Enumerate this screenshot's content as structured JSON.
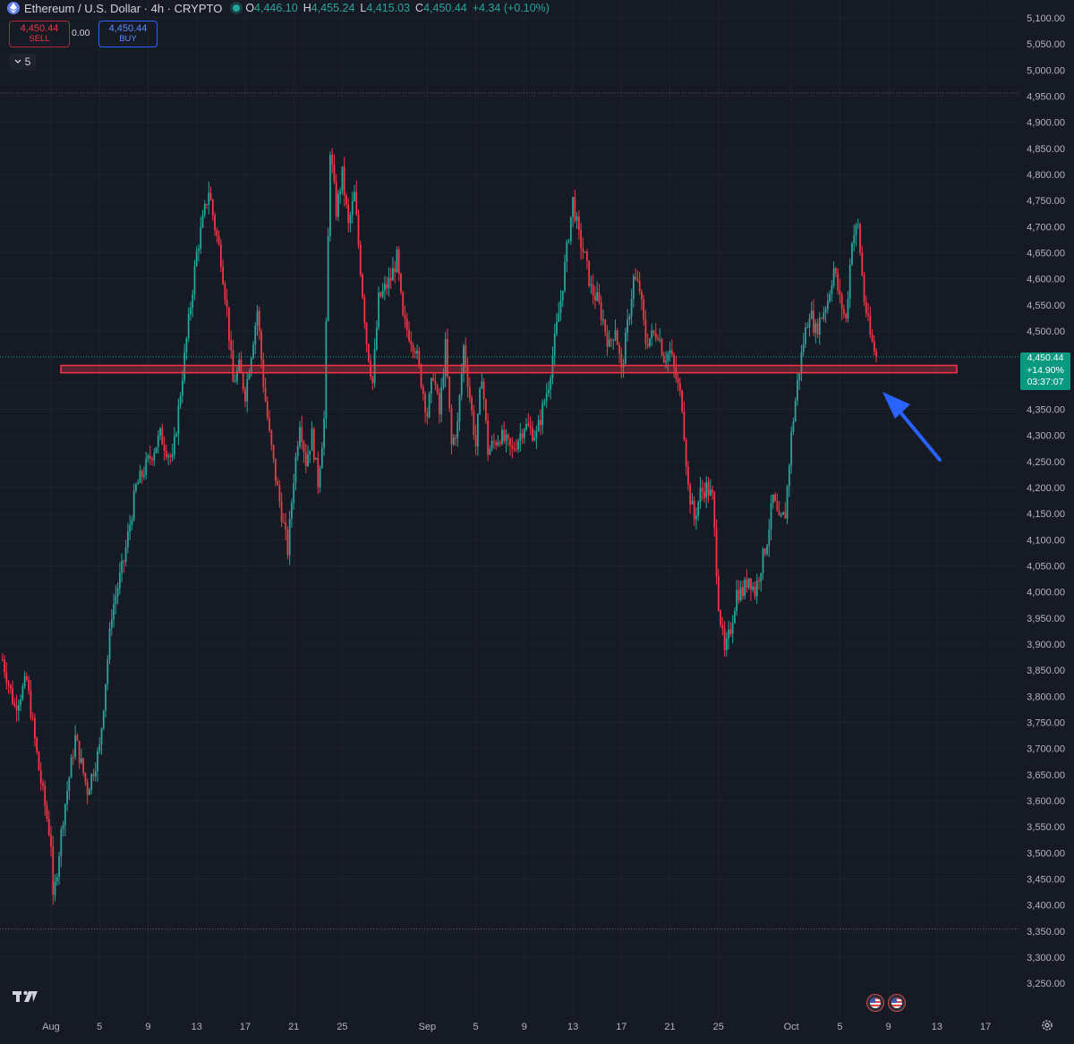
{
  "header": {
    "symbol_title": "Ethereum / U.S. Dollar · 4h · CRYPTO",
    "open_label": "O",
    "open_value": "4,446.10",
    "high_label": "H",
    "high_value": "4,455.24",
    "low_label": "L",
    "low_value": "4,415.03",
    "close_label": "C",
    "close_value": "4,450.44",
    "change": "+4.34 (+0.10%)"
  },
  "trade_panel": {
    "sell_price": "4,450.44",
    "sell_label": "SELL",
    "spread": "0.00",
    "buy_price": "4,450.44",
    "buy_label": "BUY"
  },
  "indicators_collapse": {
    "count": "5"
  },
  "last_price_tag": {
    "price": "4,450.44",
    "percent": "+14.90%",
    "countdown": "03:37:07"
  },
  "icons": {
    "currency": "ethereum-icon",
    "logo": "tradingview-logo",
    "settings": "gear-icon",
    "events": [
      "us-flag-icon",
      "us-flag-icon"
    ],
    "annotation": "arrow-icon"
  },
  "colors": {
    "background": "#161a25",
    "up": "#26a69a",
    "down": "#f23645",
    "zone": "#f23645",
    "arrow": "#2962ff",
    "price_tag": "#089981"
  },
  "chart_data": {
    "type": "candlestick",
    "timeframe": "4h",
    "y_axis": {
      "range": [
        3200,
        5120
      ],
      "ticks": [
        "5,100.00",
        "5,050.00",
        "5,000.00",
        "4,950.00",
        "4,900.00",
        "4,850.00",
        "4,800.00",
        "4,750.00",
        "4,700.00",
        "4,650.00",
        "4,600.00",
        "4,550.00",
        "4,500.00",
        "4,450.00",
        "4,400.00",
        "4,350.00",
        "4,300.00",
        "4,250.00",
        "4,200.00",
        "4,150.00",
        "4,100.00",
        "4,050.00",
        "4,000.00",
        "3,950.00",
        "3,900.00",
        "3,850.00",
        "3,800.00",
        "3,750.00",
        "3,700.00",
        "3,650.00",
        "3,600.00",
        "3,550.00",
        "3,500.00",
        "3,450.00",
        "3,400.00",
        "3,350.00",
        "3,300.00",
        "3,250.00"
      ]
    },
    "x_axis": {
      "ticks": [
        {
          "label": "Aug",
          "day": 0
        },
        {
          "label": "5",
          "day": 4
        },
        {
          "label": "9",
          "day": 8
        },
        {
          "label": "13",
          "day": 12
        },
        {
          "label": "17",
          "day": 16
        },
        {
          "label": "21",
          "day": 20
        },
        {
          "label": "25",
          "day": 24
        },
        {
          "label": "Sep",
          "day": 31
        },
        {
          "label": "5",
          "day": 35
        },
        {
          "label": "9",
          "day": 39
        },
        {
          "label": "13",
          "day": 43
        },
        {
          "label": "17",
          "day": 47
        },
        {
          "label": "21",
          "day": 51
        },
        {
          "label": "25",
          "day": 55
        },
        {
          "label": "Oct",
          "day": 61
        },
        {
          "label": "5",
          "day": 65
        },
        {
          "label": "9",
          "day": 69
        },
        {
          "label": "13",
          "day": 73
        },
        {
          "label": "17",
          "day": 77
        }
      ]
    },
    "anchors": [
      [
        -4,
        3870
      ],
      [
        -3,
        3780
      ],
      [
        -2,
        3830
      ],
      [
        -1,
        3660
      ],
      [
        0,
        3520
      ],
      [
        0,
        3370
      ],
      [
        1,
        3570
      ],
      [
        2,
        3720
      ],
      [
        3,
        3620
      ],
      [
        4,
        3700
      ],
      [
        5,
        3960
      ],
      [
        6,
        4060
      ],
      [
        7,
        4200
      ],
      [
        8,
        4250
      ],
      [
        9,
        4300
      ],
      [
        10,
        4250
      ],
      [
        11,
        4450
      ],
      [
        12,
        4650
      ],
      [
        13,
        4770
      ],
      [
        13.5,
        4700
      ],
      [
        14,
        4640
      ],
      [
        14.5,
        4540
      ],
      [
        15,
        4400
      ],
      [
        15.5,
        4430
      ],
      [
        16,
        4380
      ],
      [
        17,
        4540
      ],
      [
        17.5,
        4400
      ],
      [
        18,
        4300
      ],
      [
        18.5,
        4220
      ],
      [
        19.5,
        4080
      ],
      [
        20,
        4220
      ],
      [
        20.5,
        4330
      ],
      [
        21,
        4250
      ],
      [
        21.5,
        4300
      ],
      [
        22,
        4210
      ],
      [
        22.5,
        4330
      ],
      [
        23,
        4850
      ],
      [
        23.5,
        4730
      ],
      [
        24,
        4800
      ],
      [
        24.5,
        4700
      ],
      [
        25,
        4760
      ],
      [
        25.5,
        4620
      ],
      [
        26,
        4480
      ],
      [
        26.5,
        4400
      ],
      [
        27,
        4560
      ],
      [
        28,
        4600
      ],
      [
        28.5,
        4640
      ],
      [
        29,
        4520
      ],
      [
        30,
        4470
      ],
      [
        31,
        4340
      ],
      [
        31.5,
        4420
      ],
      [
        32,
        4340
      ],
      [
        32.5,
        4470
      ],
      [
        33,
        4280
      ],
      [
        33.5,
        4320
      ],
      [
        34,
        4470
      ],
      [
        35,
        4280
      ],
      [
        35.5,
        4420
      ],
      [
        36,
        4270
      ],
      [
        37,
        4300
      ],
      [
        38,
        4270
      ],
      [
        39,
        4320
      ],
      [
        40,
        4300
      ],
      [
        41,
        4400
      ],
      [
        42,
        4560
      ],
      [
        43,
        4750
      ],
      [
        43.5,
        4680
      ],
      [
        44,
        4640
      ],
      [
        44.5,
        4580
      ],
      [
        45,
        4560
      ],
      [
        45.5,
        4520
      ],
      [
        46,
        4470
      ],
      [
        46.5,
        4510
      ],
      [
        47,
        4420
      ],
      [
        48,
        4600
      ],
      [
        48.5,
        4580
      ],
      [
        49,
        4480
      ],
      [
        50,
        4500
      ],
      [
        50.5,
        4450
      ],
      [
        51,
        4460
      ],
      [
        52,
        4360
      ],
      [
        52.5,
        4200
      ],
      [
        53,
        4140
      ],
      [
        53.5,
        4190
      ],
      [
        54,
        4200
      ],
      [
        54.5,
        4180
      ],
      [
        55,
        3980
      ],
      [
        55.5,
        3880
      ],
      [
        56,
        3930
      ],
      [
        56.5,
        4000
      ],
      [
        57,
        4000
      ],
      [
        57.5,
        4030
      ],
      [
        58,
        4000
      ],
      [
        59,
        4100
      ],
      [
        59.5,
        4180
      ],
      [
        60,
        4130
      ],
      [
        60.5,
        4150
      ],
      [
        61,
        4300
      ],
      [
        61.5,
        4400
      ],
      [
        62,
        4480
      ],
      [
        62.5,
        4540
      ],
      [
        63,
        4500
      ],
      [
        64,
        4560
      ],
      [
        64.5,
        4620
      ],
      [
        65,
        4560
      ],
      [
        65.5,
        4520
      ],
      [
        66,
        4680
      ],
      [
        66.5,
        4700
      ],
      [
        67,
        4560
      ],
      [
        67.5,
        4490
      ],
      [
        68,
        4450
      ]
    ],
    "support_zone": {
      "low": 4420,
      "high": 4434
    },
    "range_lines": [
      4956,
      3354
    ],
    "current_price": 4450.44,
    "annotation": "arrow pointing to support zone"
  }
}
